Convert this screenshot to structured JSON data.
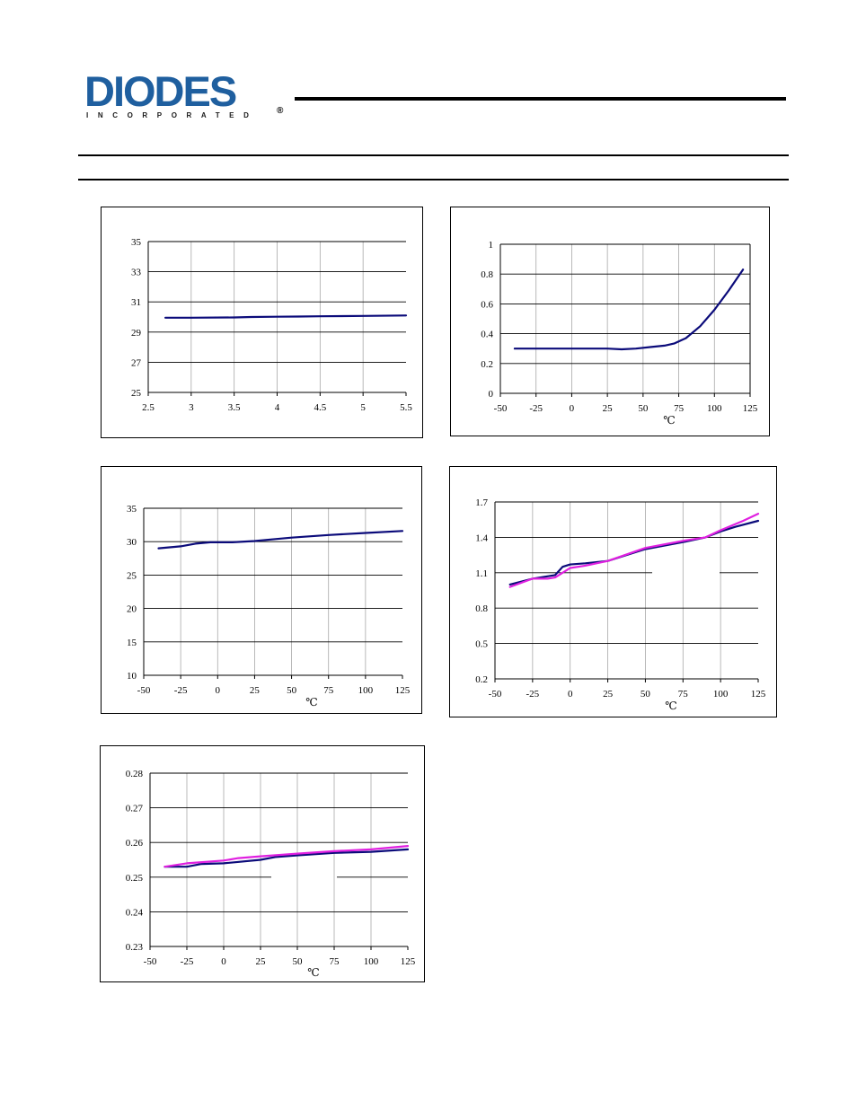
{
  "header": {
    "logo_text": "DIODES",
    "logo_subtext": "INCORPORATED",
    "logo_mark": "®",
    "brand_color": "#1f5f9f"
  },
  "colors": {
    "series_navy": "#0b0b7a",
    "series_magenta": "#e020e0"
  },
  "chart_data": [
    {
      "type": "line",
      "xlim": [
        2.5,
        5.5
      ],
      "ylim": [
        25,
        35
      ],
      "xticks": [
        "2.5",
        "3",
        "3.5",
        "4",
        "4.5",
        "5",
        "5.5"
      ],
      "yticks": [
        "35",
        "33",
        "31",
        "29",
        "27",
        "25"
      ],
      "xlabel": "",
      "grid": true,
      "series": [
        {
          "color": "#0b0b7a",
          "x": [
            2.7,
            3.0,
            3.5,
            3.7,
            4.0,
            4.25,
            4.5,
            5.0,
            5.5
          ],
          "y": [
            29.95,
            29.95,
            29.97,
            30.0,
            30.02,
            30.03,
            30.05,
            30.07,
            30.1
          ]
        }
      ]
    },
    {
      "type": "line",
      "xlim": [
        -50,
        125
      ],
      "ylim": [
        0,
        1
      ],
      "xticks": [
        "-50",
        "-25",
        "0",
        "25",
        "50",
        "75",
        "100",
        "125"
      ],
      "yticks": [
        "1",
        "0.8",
        "0.6",
        "0.4",
        "0.2",
        "0"
      ],
      "xlabel": "℃",
      "grid": true,
      "series": [
        {
          "color": "#0b0b7a",
          "x": [
            -40,
            -25,
            0,
            25,
            35,
            45,
            55,
            65,
            72,
            80,
            90,
            100,
            110,
            120
          ],
          "y": [
            0.3,
            0.3,
            0.3,
            0.3,
            0.295,
            0.3,
            0.31,
            0.32,
            0.335,
            0.37,
            0.45,
            0.56,
            0.69,
            0.83
          ]
        }
      ]
    },
    {
      "type": "line",
      "xlim": [
        -50,
        125
      ],
      "ylim": [
        10,
        35
      ],
      "xticks": [
        "-50",
        "-25",
        "0",
        "25",
        "50",
        "75",
        "100",
        "125"
      ],
      "yticks": [
        "35",
        "30",
        "25",
        "20",
        "15",
        "10"
      ],
      "xlabel": "℃",
      "grid": true,
      "series": [
        {
          "color": "#0b0b7a",
          "x": [
            -40,
            -25,
            -15,
            -5,
            0,
            10,
            25,
            40,
            50,
            75,
            100,
            125
          ],
          "y": [
            29.0,
            29.3,
            29.7,
            29.9,
            29.9,
            29.9,
            30.1,
            30.4,
            30.6,
            31.0,
            31.3,
            31.6
          ]
        }
      ]
    },
    {
      "type": "line",
      "xlim": [
        -50,
        125
      ],
      "ylim": [
        0.2,
        1.7
      ],
      "xticks": [
        "-50",
        "-25",
        "0",
        "25",
        "50",
        "75",
        "100",
        "125"
      ],
      "yticks": [
        "1.7",
        "1.4",
        "1.1",
        "0.8",
        "0.5",
        "0.2"
      ],
      "xlabel": "℃",
      "grid": true,
      "series": [
        {
          "color": "#0b0b7a",
          "x": [
            -40,
            -25,
            -10,
            -5,
            0,
            10,
            25,
            50,
            75,
            90,
            100,
            110,
            125
          ],
          "y": [
            1.0,
            1.05,
            1.08,
            1.15,
            1.17,
            1.18,
            1.2,
            1.3,
            1.36,
            1.4,
            1.45,
            1.49,
            1.54
          ]
        },
        {
          "color": "#e020e0",
          "x": [
            -40,
            -25,
            -15,
            -10,
            -5,
            0,
            10,
            25,
            50,
            75,
            90,
            100,
            115,
            125
          ],
          "y": [
            0.98,
            1.05,
            1.05,
            1.06,
            1.1,
            1.14,
            1.16,
            1.2,
            1.31,
            1.37,
            1.4,
            1.46,
            1.54,
            1.6
          ]
        }
      ]
    },
    {
      "type": "line",
      "xlim": [
        -50,
        125
      ],
      "ylim": [
        0.23,
        0.28
      ],
      "xticks": [
        "-50",
        "-25",
        "0",
        "25",
        "50",
        "75",
        "100",
        "125"
      ],
      "yticks": [
        "0.28",
        "0.27",
        "0.26",
        "0.25",
        "0.24",
        "0.23"
      ],
      "xlabel": "℃",
      "grid": true,
      "series": [
        {
          "color": "#0b0b7a",
          "x": [
            -40,
            -25,
            -15,
            0,
            25,
            35,
            50,
            75,
            100,
            125
          ],
          "y": [
            0.253,
            0.253,
            0.2538,
            0.254,
            0.255,
            0.2558,
            0.2563,
            0.257,
            0.2573,
            0.258
          ]
        },
        {
          "color": "#e020e0",
          "x": [
            -40,
            -25,
            0,
            10,
            25,
            50,
            75,
            100,
            125
          ],
          "y": [
            0.253,
            0.254,
            0.2548,
            0.2555,
            0.256,
            0.2568,
            0.2575,
            0.258,
            0.259
          ]
        }
      ]
    }
  ]
}
